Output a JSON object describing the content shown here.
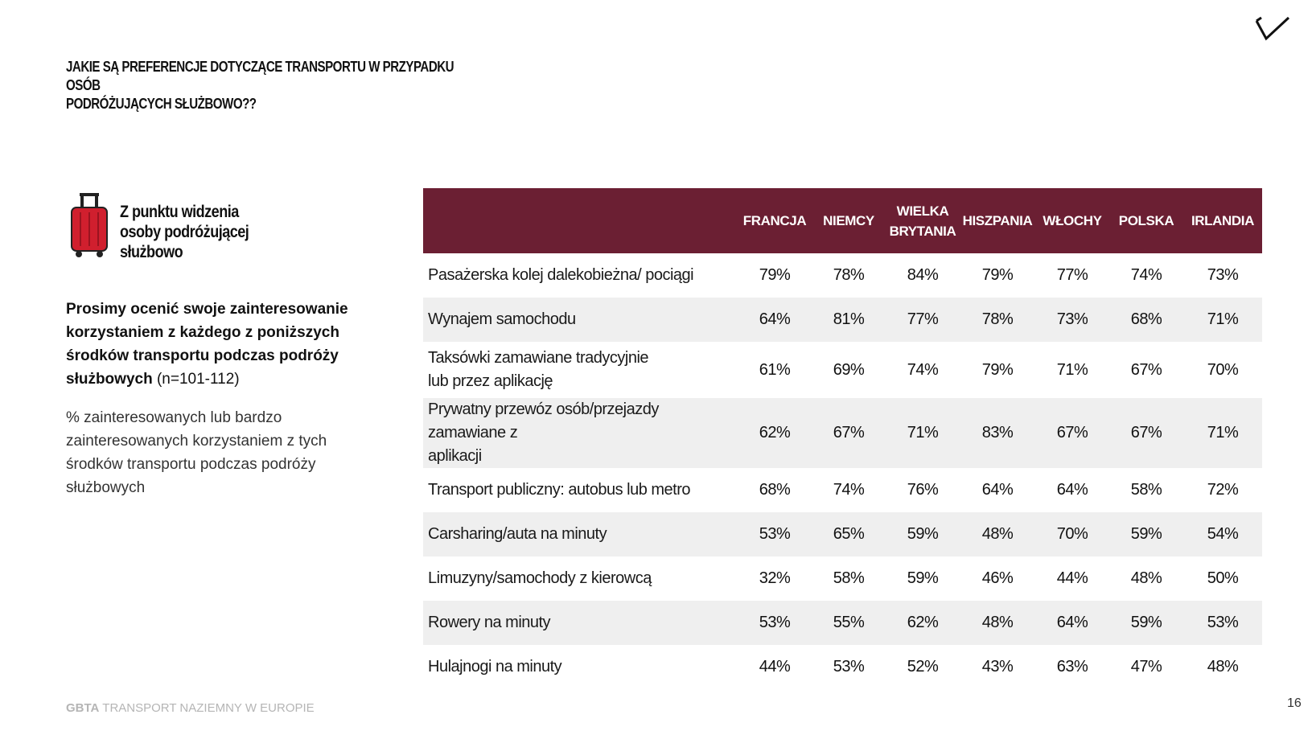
{
  "header": {
    "title_line1": "JAKIE SĄ PREFERENCJE DOTYCZĄCE TRANSPORTU W PRZYPADKU OSÓB",
    "title_line2": "PODRÓŻUJĄCYCH SŁUŻBOWO??"
  },
  "logo": {
    "icon": "checkmark-logo-icon"
  },
  "sidebar": {
    "icon": "suitcase-icon",
    "perspective_line1": "Z punktu widzenia",
    "perspective_line2": "osoby podróżującej",
    "perspective_line3": "służbowo",
    "question_bold": "Prosimy ocenić swoje zainteresowanie korzystaniem z każdego z poniższych środków transportu podczas podróży służbowych",
    "question_n": "(n=101-112)",
    "note": "% zainteresowanych lub bardzo zainteresowanych korzystaniem z tych środków transportu podczas podróży służbowych"
  },
  "table": {
    "columns": [
      {
        "line1": "FRANCJA",
        "line2": ""
      },
      {
        "line1": "NIEMCY",
        "line2": ""
      },
      {
        "line1": "WIELKA",
        "line2": "BRYTANIA"
      },
      {
        "line1": "HISZPANIA",
        "line2": ""
      },
      {
        "line1": "WŁOCHY",
        "line2": ""
      },
      {
        "line1": "POLSKA",
        "line2": ""
      },
      {
        "line1": "IRLANDIA",
        "line2": ""
      }
    ],
    "rows": [
      {
        "line1": "Pasażerska kolej dalekobieżna/ pociągi",
        "line2": "",
        "values": [
          "79%",
          "78%",
          "84%",
          "79%",
          "77%",
          "74%",
          "73%"
        ]
      },
      {
        "line1": "Wynajem samochodu",
        "line2": "",
        "values": [
          "64%",
          "81%",
          "77%",
          "78%",
          "73%",
          "68%",
          "71%"
        ]
      },
      {
        "line1": "Taksówki zamawiane tradycyjnie",
        "line2": "lub przez aplikację",
        "values": [
          "61%",
          "69%",
          "74%",
          "79%",
          "71%",
          "67%",
          "70%"
        ]
      },
      {
        "line1": "Prywatny przewóz osób/przejazdy zamawiane z",
        "line2": "aplikacji",
        "values": [
          "62%",
          "67%",
          "71%",
          "83%",
          "67%",
          "67%",
          "71%"
        ]
      },
      {
        "line1": "Transport publiczny: autobus lub metro",
        "line2": "",
        "values": [
          "68%",
          "74%",
          "76%",
          "64%",
          "64%",
          "58%",
          "72%"
        ]
      },
      {
        "line1": "Carsharing/auta na minuty",
        "line2": "",
        "values": [
          "53%",
          "65%",
          "59%",
          "48%",
          "70%",
          "59%",
          "54%"
        ]
      },
      {
        "line1": "Limuzyny/samochody z kierowcą",
        "line2": "",
        "values": [
          "32%",
          "58%",
          "59%",
          "46%",
          "44%",
          "48%",
          "50%"
        ]
      },
      {
        "line1": "Rowery na minuty",
        "line2": "",
        "values": [
          "53%",
          "55%",
          "62%",
          "48%",
          "64%",
          "59%",
          "53%"
        ]
      },
      {
        "line1": "Hulajnogi na minuty",
        "line2": "",
        "values": [
          "44%",
          "53%",
          "52%",
          "43%",
          "63%",
          "47%",
          "48%"
        ]
      }
    ]
  },
  "footer": {
    "brand": "GBTA",
    "text": "TRANSPORT NAZIEMNY W EUROPIE",
    "page": "16"
  },
  "colors": {
    "header_bg": "#6b1f33",
    "stripe": "#efefef",
    "suitcase": "#d01f2e"
  }
}
